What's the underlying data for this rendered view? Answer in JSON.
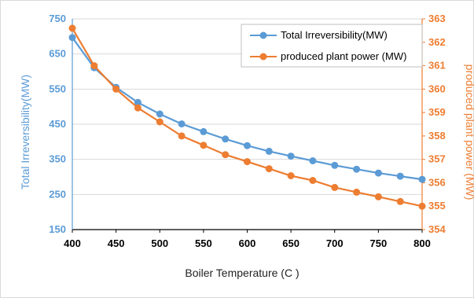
{
  "chart_data": {
    "type": "line",
    "x": [
      400,
      425,
      450,
      475,
      500,
      525,
      550,
      575,
      600,
      625,
      650,
      675,
      700,
      725,
      750,
      775,
      800
    ],
    "xlabel": "Boiler Temperature (C )",
    "xlim": [
      400,
      800
    ],
    "xticks": [
      400,
      450,
      500,
      550,
      600,
      650,
      700,
      750,
      800
    ],
    "grid": "horizontal",
    "legend_position": "top-right",
    "y_left": {
      "label": "Total Irreversibility(MW)",
      "ylim": [
        150,
        750
      ],
      "ticks": [
        150,
        250,
        350,
        450,
        550,
        650,
        750
      ],
      "color": "#5b9bd5"
    },
    "y_right": {
      "label": "produced plant power (MW)",
      "ylim": [
        354,
        363
      ],
      "ticks": [
        354,
        355,
        356,
        357,
        358,
        359,
        360,
        361,
        362,
        363
      ],
      "color": "#ed7d31"
    },
    "series": [
      {
        "name": "Total Irreversibility(MW)",
        "axis": "left",
        "color": "#5b9bd5",
        "values": [
          697,
          611,
          555,
          512,
          479,
          451,
          429,
          408,
          389,
          373,
          359,
          346,
          333,
          322,
          311,
          302,
          293
        ]
      },
      {
        "name": "produced plant power (MW)",
        "axis": "right",
        "color": "#ed7d31",
        "values": [
          362.6,
          361.0,
          360.0,
          359.2,
          358.6,
          358.0,
          357.6,
          357.2,
          356.9,
          356.6,
          356.3,
          356.1,
          355.8,
          355.6,
          355.4,
          355.2,
          355.0
        ]
      }
    ]
  }
}
